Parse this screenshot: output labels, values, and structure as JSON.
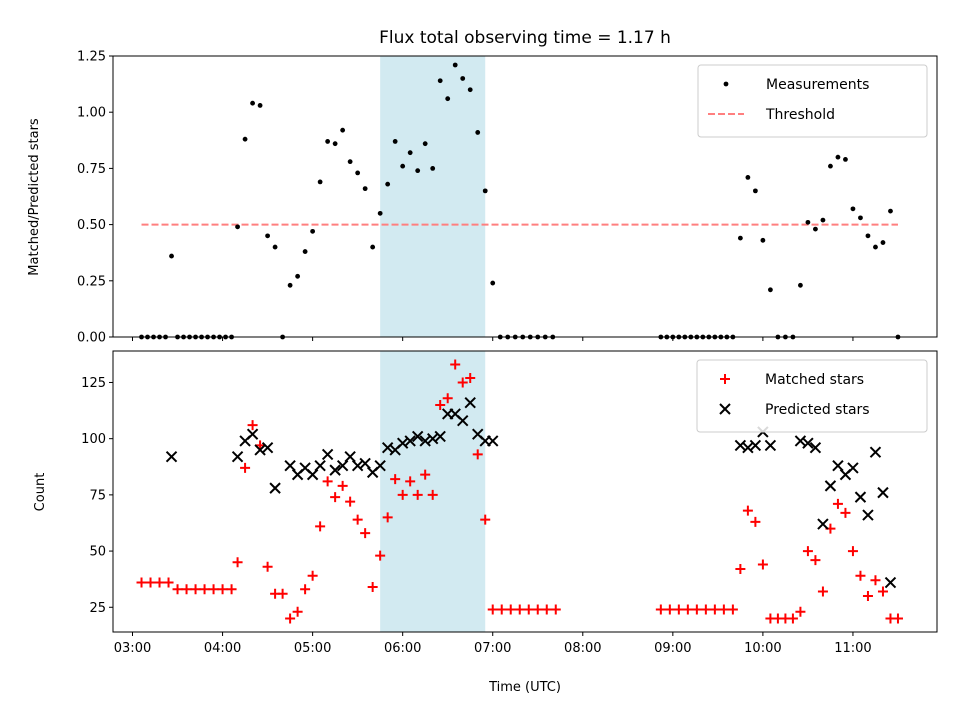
{
  "chart_data": [
    {
      "type": "scatter",
      "title": "Flux total observing time = 1.17 h",
      "xlabel": "",
      "ylabel": "Matched/Predicted stars",
      "xlim": [
        "02:47",
        "11:56"
      ],
      "ylim": [
        0,
        1.25
      ],
      "x_ticks": [
        "03:00",
        "04:00",
        "05:00",
        "06:00",
        "07:00",
        "08:00",
        "09:00",
        "10:00",
        "11:00"
      ],
      "y_ticks": [
        "0.00",
        "0.25",
        "0.50",
        "0.75",
        "1.00",
        "1.25"
      ],
      "highlight_span": [
        "05:45",
        "06:55"
      ],
      "highlight_color": "#add8e6",
      "grid": false,
      "legend_position": "top-right",
      "threshold": {
        "name": "Threshold",
        "y": 0.5,
        "x_start": "03:06",
        "x_end": "11:30",
        "color": "#ff7f7f"
      },
      "series": [
        {
          "name": "Measurements",
          "color": "#000000",
          "points": [
            [
              "03:06",
              0.0
            ],
            [
              "03:10",
              0.0
            ],
            [
              "03:14",
              0.0
            ],
            [
              "03:18",
              0.0
            ],
            [
              "03:22",
              0.0
            ],
            [
              "03:26",
              0.36
            ],
            [
              "03:30",
              0.0
            ],
            [
              "03:34",
              0.0
            ],
            [
              "03:38",
              0.0
            ],
            [
              "03:42",
              0.0
            ],
            [
              "03:46",
              0.0
            ],
            [
              "03:50",
              0.0
            ],
            [
              "03:54",
              0.0
            ],
            [
              "03:58",
              0.0
            ],
            [
              "04:02",
              0.0
            ],
            [
              "04:06",
              0.0
            ],
            [
              "04:10",
              0.49
            ],
            [
              "04:15",
              0.88
            ],
            [
              "04:20",
              1.04
            ],
            [
              "04:25",
              1.03
            ],
            [
              "04:30",
              0.45
            ],
            [
              "04:35",
              0.4
            ],
            [
              "04:40",
              0.0
            ],
            [
              "04:45",
              0.23
            ],
            [
              "04:50",
              0.27
            ],
            [
              "04:55",
              0.38
            ],
            [
              "05:00",
              0.47
            ],
            [
              "05:05",
              0.69
            ],
            [
              "05:10",
              0.87
            ],
            [
              "05:15",
              0.86
            ],
            [
              "05:20",
              0.92
            ],
            [
              "05:25",
              0.78
            ],
            [
              "05:30",
              0.73
            ],
            [
              "05:35",
              0.66
            ],
            [
              "05:40",
              0.4
            ],
            [
              "05:45",
              0.55
            ],
            [
              "05:50",
              0.68
            ],
            [
              "05:55",
              0.87
            ],
            [
              "06:00",
              0.76
            ],
            [
              "06:05",
              0.82
            ],
            [
              "06:10",
              0.74
            ],
            [
              "06:15",
              0.86
            ],
            [
              "06:20",
              0.75
            ],
            [
              "06:25",
              1.14
            ],
            [
              "06:30",
              1.06
            ],
            [
              "06:35",
              1.21
            ],
            [
              "06:40",
              1.15
            ],
            [
              "06:45",
              1.1
            ],
            [
              "06:50",
              0.91
            ],
            [
              "06:55",
              0.65
            ],
            [
              "07:00",
              0.24
            ],
            [
              "07:05",
              0.0
            ],
            [
              "07:10",
              0.0
            ],
            [
              "07:15",
              0.0
            ],
            [
              "07:20",
              0.0
            ],
            [
              "07:25",
              0.0
            ],
            [
              "07:30",
              0.0
            ],
            [
              "07:35",
              0.0
            ],
            [
              "07:40",
              0.0
            ],
            [
              "08:52",
              0.0
            ],
            [
              "08:56",
              0.0
            ],
            [
              "09:00",
              0.0
            ],
            [
              "09:04",
              0.0
            ],
            [
              "09:08",
              0.0
            ],
            [
              "09:12",
              0.0
            ],
            [
              "09:16",
              0.0
            ],
            [
              "09:20",
              0.0
            ],
            [
              "09:24",
              0.0
            ],
            [
              "09:28",
              0.0
            ],
            [
              "09:32",
              0.0
            ],
            [
              "09:36",
              0.0
            ],
            [
              "09:40",
              0.0
            ],
            [
              "09:45",
              0.44
            ],
            [
              "09:50",
              0.71
            ],
            [
              "09:55",
              0.65
            ],
            [
              "10:00",
              0.43
            ],
            [
              "10:05",
              0.21
            ],
            [
              "10:10",
              0.0
            ],
            [
              "10:15",
              0.0
            ],
            [
              "10:20",
              0.0
            ],
            [
              "10:25",
              0.23
            ],
            [
              "10:30",
              0.51
            ],
            [
              "10:35",
              0.48
            ],
            [
              "10:40",
              0.52
            ],
            [
              "10:45",
              0.76
            ],
            [
              "10:50",
              0.8
            ],
            [
              "10:55",
              0.79
            ],
            [
              "11:00",
              0.57
            ],
            [
              "11:05",
              0.53
            ],
            [
              "11:10",
              0.45
            ],
            [
              "11:15",
              0.4
            ],
            [
              "11:20",
              0.42
            ],
            [
              "11:25",
              0.56
            ],
            [
              "11:30",
              0.0
            ]
          ]
        }
      ]
    },
    {
      "type": "scatter",
      "title": "",
      "xlabel": "Time (UTC)",
      "ylabel": "Count",
      "xlim": [
        "02:47",
        "11:56"
      ],
      "ylim": [
        14,
        139
      ],
      "x_ticks": [
        "03:00",
        "04:00",
        "05:00",
        "06:00",
        "07:00",
        "08:00",
        "09:00",
        "10:00",
        "11:00"
      ],
      "y_ticks": [
        "25",
        "50",
        "75",
        "100",
        "125"
      ],
      "highlight_span": [
        "05:45",
        "06:55"
      ],
      "highlight_color": "#add8e6",
      "grid": false,
      "legend_position": "top-right",
      "series": [
        {
          "name": "Matched stars",
          "marker": "+",
          "color": "#ff0000",
          "points": [
            [
              "03:06",
              36
            ],
            [
              "03:12",
              36
            ],
            [
              "03:18",
              36
            ],
            [
              "03:24",
              36
            ],
            [
              "03:30",
              33
            ],
            [
              "03:36",
              33
            ],
            [
              "03:42",
              33
            ],
            [
              "03:48",
              33
            ],
            [
              "03:54",
              33
            ],
            [
              "04:00",
              33
            ],
            [
              "04:06",
              33
            ],
            [
              "04:10",
              45
            ],
            [
              "04:15",
              87
            ],
            [
              "04:20",
              106
            ],
            [
              "04:25",
              97
            ],
            [
              "04:30",
              43
            ],
            [
              "04:35",
              31
            ],
            [
              "04:40",
              31
            ],
            [
              "04:45",
              20
            ],
            [
              "04:50",
              23
            ],
            [
              "04:55",
              33
            ],
            [
              "05:00",
              39
            ],
            [
              "05:05",
              61
            ],
            [
              "05:10",
              81
            ],
            [
              "05:15",
              74
            ],
            [
              "05:20",
              79
            ],
            [
              "05:25",
              72
            ],
            [
              "05:30",
              64
            ],
            [
              "05:35",
              58
            ],
            [
              "05:40",
              34
            ],
            [
              "05:45",
              48
            ],
            [
              "05:50",
              65
            ],
            [
              "05:55",
              82
            ],
            [
              "06:00",
              75
            ],
            [
              "06:05",
              81
            ],
            [
              "06:10",
              75
            ],
            [
              "06:15",
              84
            ],
            [
              "06:20",
              75
            ],
            [
              "06:25",
              115
            ],
            [
              "06:30",
              118
            ],
            [
              "06:35",
              133
            ],
            [
              "06:40",
              125
            ],
            [
              "06:45",
              127
            ],
            [
              "06:50",
              93
            ],
            [
              "06:55",
              64
            ],
            [
              "07:00",
              24
            ],
            [
              "07:06",
              24
            ],
            [
              "07:12",
              24
            ],
            [
              "07:18",
              24
            ],
            [
              "07:24",
              24
            ],
            [
              "07:30",
              24
            ],
            [
              "07:36",
              24
            ],
            [
              "07:42",
              24
            ],
            [
              "08:52",
              24
            ],
            [
              "08:58",
              24
            ],
            [
              "09:04",
              24
            ],
            [
              "09:10",
              24
            ],
            [
              "09:16",
              24
            ],
            [
              "09:22",
              24
            ],
            [
              "09:28",
              24
            ],
            [
              "09:34",
              24
            ],
            [
              "09:40",
              24
            ],
            [
              "09:45",
              42
            ],
            [
              "09:50",
              68
            ],
            [
              "09:55",
              63
            ],
            [
              "10:00",
              44
            ],
            [
              "10:05",
              20
            ],
            [
              "10:10",
              20
            ],
            [
              "10:15",
              20
            ],
            [
              "10:20",
              20
            ],
            [
              "10:25",
              23
            ],
            [
              "10:30",
              50
            ],
            [
              "10:35",
              46
            ],
            [
              "10:40",
              32
            ],
            [
              "10:45",
              60
            ],
            [
              "10:50",
              71
            ],
            [
              "10:55",
              67
            ],
            [
              "11:00",
              50
            ],
            [
              "11:05",
              39
            ],
            [
              "11:10",
              30
            ],
            [
              "11:15",
              37
            ],
            [
              "11:20",
              32
            ],
            [
              "11:25",
              20
            ],
            [
              "11:30",
              20
            ]
          ]
        },
        {
          "name": "Predicted stars",
          "marker": "x",
          "color": "#000000",
          "points": [
            [
              "03:26",
              92
            ],
            [
              "04:10",
              92
            ],
            [
              "04:15",
              99
            ],
            [
              "04:20",
              102
            ],
            [
              "04:25",
              95
            ],
            [
              "04:30",
              96
            ],
            [
              "04:35",
              78
            ],
            [
              "04:45",
              88
            ],
            [
              "04:50",
              84
            ],
            [
              "04:55",
              87
            ],
            [
              "05:00",
              84
            ],
            [
              "05:05",
              88
            ],
            [
              "05:10",
              93
            ],
            [
              "05:15",
              86
            ],
            [
              "05:20",
              88
            ],
            [
              "05:25",
              92
            ],
            [
              "05:30",
              88
            ],
            [
              "05:35",
              89
            ],
            [
              "05:40",
              85
            ],
            [
              "05:45",
              88
            ],
            [
              "05:50",
              96
            ],
            [
              "05:55",
              95
            ],
            [
              "06:00",
              98
            ],
            [
              "06:05",
              99
            ],
            [
              "06:10",
              101
            ],
            [
              "06:15",
              99
            ],
            [
              "06:20",
              100
            ],
            [
              "06:25",
              101
            ],
            [
              "06:30",
              111
            ],
            [
              "06:35",
              111
            ],
            [
              "06:40",
              108
            ],
            [
              "06:45",
              116
            ],
            [
              "06:50",
              102
            ],
            [
              "06:55",
              99
            ],
            [
              "07:00",
              99
            ],
            [
              "09:45",
              97
            ],
            [
              "09:50",
              96
            ],
            [
              "09:55",
              97
            ],
            [
              "10:00",
              103
            ],
            [
              "10:05",
              97
            ],
            [
              "10:25",
              99
            ],
            [
              "10:30",
              98
            ],
            [
              "10:35",
              96
            ],
            [
              "10:40",
              62
            ],
            [
              "10:45",
              79
            ],
            [
              "10:50",
              88
            ],
            [
              "10:55",
              84
            ],
            [
              "11:00",
              87
            ],
            [
              "11:05",
              74
            ],
            [
              "11:10",
              66
            ],
            [
              "11:15",
              94
            ],
            [
              "11:20",
              76
            ],
            [
              "11:25",
              36
            ]
          ]
        }
      ]
    }
  ]
}
